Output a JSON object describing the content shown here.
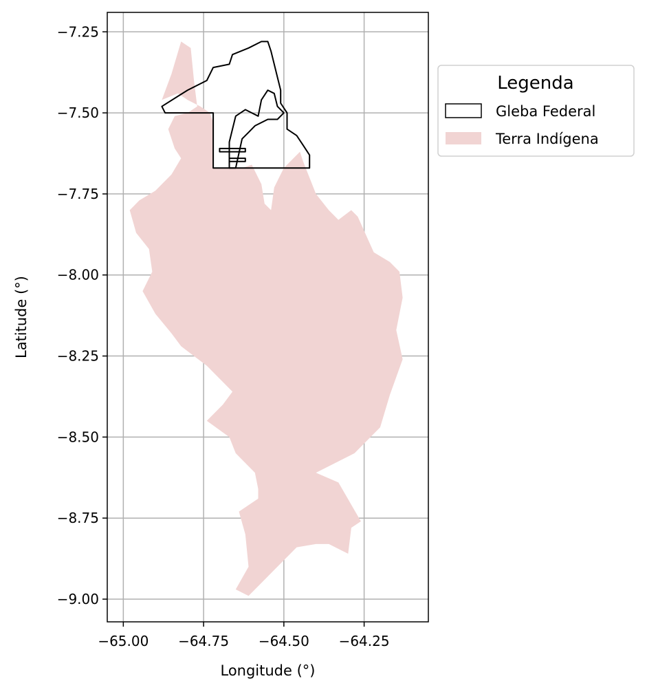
{
  "chart_data": {
    "type": "map",
    "xlabel": "Longitude (°)",
    "ylabel": "Latitude (°)",
    "xlim": [
      -65.05,
      -64.05
    ],
    "ylim": [
      -9.07,
      -7.19
    ],
    "xticks": [
      -65.0,
      -64.75,
      -64.5,
      -64.25
    ],
    "yticks": [
      -7.25,
      -7.5,
      -7.75,
      -8.0,
      -8.25,
      -8.5,
      -8.75,
      -9.0
    ],
    "xtick_labels": [
      "−65.00",
      "−64.75",
      "−64.50",
      "−64.25"
    ],
    "ytick_labels": [
      "−7.25",
      "−7.50",
      "−7.75",
      "−8.00",
      "−8.25",
      "−8.50",
      "−8.75",
      "−9.00"
    ],
    "grid": true,
    "legend": {
      "title": "Legenda",
      "position": "outside-right-top",
      "entries": [
        "Gleba Federal",
        "Terra Indígena"
      ]
    },
    "colors": {
      "terra_indigena_fill": "#f1d4d3",
      "gleba_edge": "#000000",
      "grid": "#b0b0b0"
    },
    "layers": [
      {
        "name": "Terra Indígena",
        "style": "fill",
        "coordinates": [
          [
            -64.88,
            -7.46
          ],
          [
            -64.85,
            -7.38
          ],
          [
            -64.82,
            -7.28
          ],
          [
            -64.79,
            -7.3
          ],
          [
            -64.78,
            -7.4
          ],
          [
            -64.77,
            -7.48
          ],
          [
            -64.8,
            -7.5
          ],
          [
            -64.84,
            -7.51
          ],
          [
            -64.86,
            -7.55
          ],
          [
            -64.84,
            -7.61
          ],
          [
            -64.82,
            -7.64
          ],
          [
            -64.85,
            -7.69
          ],
          [
            -64.9,
            -7.74
          ],
          [
            -64.95,
            -7.77
          ],
          [
            -64.98,
            -7.8
          ],
          [
            -64.96,
            -7.87
          ],
          [
            -64.92,
            -7.92
          ],
          [
            -64.91,
            -7.99
          ],
          [
            -64.94,
            -8.05
          ],
          [
            -64.9,
            -8.12
          ],
          [
            -64.85,
            -8.18
          ],
          [
            -64.82,
            -8.22
          ],
          [
            -64.74,
            -8.28
          ],
          [
            -64.66,
            -8.36
          ],
          [
            -64.69,
            -8.4
          ],
          [
            -64.74,
            -8.45
          ],
          [
            -64.67,
            -8.5
          ],
          [
            -64.65,
            -8.55
          ],
          [
            -64.59,
            -8.61
          ],
          [
            -64.58,
            -8.66
          ],
          [
            -64.58,
            -8.69
          ],
          [
            -64.64,
            -8.73
          ],
          [
            -64.62,
            -8.8
          ],
          [
            -64.61,
            -8.9
          ],
          [
            -64.65,
            -8.97
          ],
          [
            -64.61,
            -8.99
          ],
          [
            -64.54,
            -8.92
          ],
          [
            -64.46,
            -8.84
          ],
          [
            -64.4,
            -8.83
          ],
          [
            -64.36,
            -8.83
          ],
          [
            -64.3,
            -8.86
          ],
          [
            -64.29,
            -8.78
          ],
          [
            -64.26,
            -8.76
          ],
          [
            -64.33,
            -8.64
          ],
          [
            -64.4,
            -8.61
          ],
          [
            -64.28,
            -8.55
          ],
          [
            -64.2,
            -8.47
          ],
          [
            -64.17,
            -8.37
          ],
          [
            -64.13,
            -8.26
          ],
          [
            -64.15,
            -8.17
          ],
          [
            -64.13,
            -8.07
          ],
          [
            -64.14,
            -7.99
          ],
          [
            -64.17,
            -7.96
          ],
          [
            -64.22,
            -7.93
          ],
          [
            -64.27,
            -7.82
          ],
          [
            -64.29,
            -7.8
          ],
          [
            -64.33,
            -7.83
          ],
          [
            -64.36,
            -7.8
          ],
          [
            -64.4,
            -7.75
          ],
          [
            -64.44,
            -7.65
          ],
          [
            -64.45,
            -7.62
          ],
          [
            -64.5,
            -7.67
          ],
          [
            -64.53,
            -7.73
          ],
          [
            -64.54,
            -7.8
          ],
          [
            -64.56,
            -7.78
          ],
          [
            -64.57,
            -7.72
          ],
          [
            -64.6,
            -7.66
          ],
          [
            -64.63,
            -7.67
          ],
          [
            -64.68,
            -7.67
          ],
          [
            -64.72,
            -7.67
          ],
          [
            -64.72,
            -7.53
          ],
          [
            -64.73,
            -7.5
          ],
          [
            -64.76,
            -7.48
          ],
          [
            -64.8,
            -7.46
          ],
          [
            -64.83,
            -7.44
          ]
        ]
      },
      {
        "name": "Gleba Federal",
        "style": "outline",
        "coordinates": [
          [
            -64.88,
            -7.48
          ],
          [
            -64.8,
            -7.43
          ],
          [
            -64.74,
            -7.4
          ],
          [
            -64.72,
            -7.36
          ],
          [
            -64.67,
            -7.35
          ],
          [
            -64.66,
            -7.32
          ],
          [
            -64.61,
            -7.3
          ],
          [
            -64.57,
            -7.28
          ],
          [
            -64.55,
            -7.28
          ],
          [
            -64.54,
            -7.31
          ],
          [
            -64.52,
            -7.39
          ],
          [
            -64.51,
            -7.43
          ],
          [
            -64.51,
            -7.47
          ],
          [
            -64.49,
            -7.5
          ],
          [
            -64.49,
            -7.55
          ],
          [
            -64.46,
            -7.57
          ],
          [
            -64.44,
            -7.6
          ],
          [
            -64.42,
            -7.63
          ],
          [
            -64.42,
            -7.67
          ],
          [
            -64.72,
            -7.67
          ],
          [
            -64.72,
            -7.5
          ],
          [
            -64.87,
            -7.5
          ]
        ]
      },
      {
        "name": "Gleba Federal",
        "style": "outline",
        "coordinates": [
          [
            -64.65,
            -7.51
          ],
          [
            -64.62,
            -7.49
          ],
          [
            -64.6,
            -7.5
          ],
          [
            -64.58,
            -7.51
          ],
          [
            -64.57,
            -7.46
          ],
          [
            -64.55,
            -7.43
          ],
          [
            -64.53,
            -7.44
          ],
          [
            -64.52,
            -7.48
          ],
          [
            -64.5,
            -7.5
          ],
          [
            -64.52,
            -7.52
          ],
          [
            -64.55,
            -7.52
          ],
          [
            -64.59,
            -7.54
          ],
          [
            -64.61,
            -7.56
          ],
          [
            -64.63,
            -7.58
          ],
          [
            -64.65,
            -7.67
          ],
          [
            -64.67,
            -7.67
          ],
          [
            -64.67,
            -7.59
          ],
          [
            -64.66,
            -7.55
          ]
        ]
      },
      {
        "name": "Gleba Federal",
        "style": "outline",
        "coordinates": [
          [
            -64.7,
            -7.61
          ],
          [
            -64.62,
            -7.61
          ],
          [
            -64.62,
            -7.62
          ],
          [
            -64.7,
            -7.62
          ]
        ]
      },
      {
        "name": "Gleba Federal",
        "style": "outline",
        "coordinates": [
          [
            -64.67,
            -7.65
          ],
          [
            -64.62,
            -7.65
          ],
          [
            -64.62,
            -7.64
          ],
          [
            -64.67,
            -7.64
          ]
        ]
      }
    ]
  }
}
